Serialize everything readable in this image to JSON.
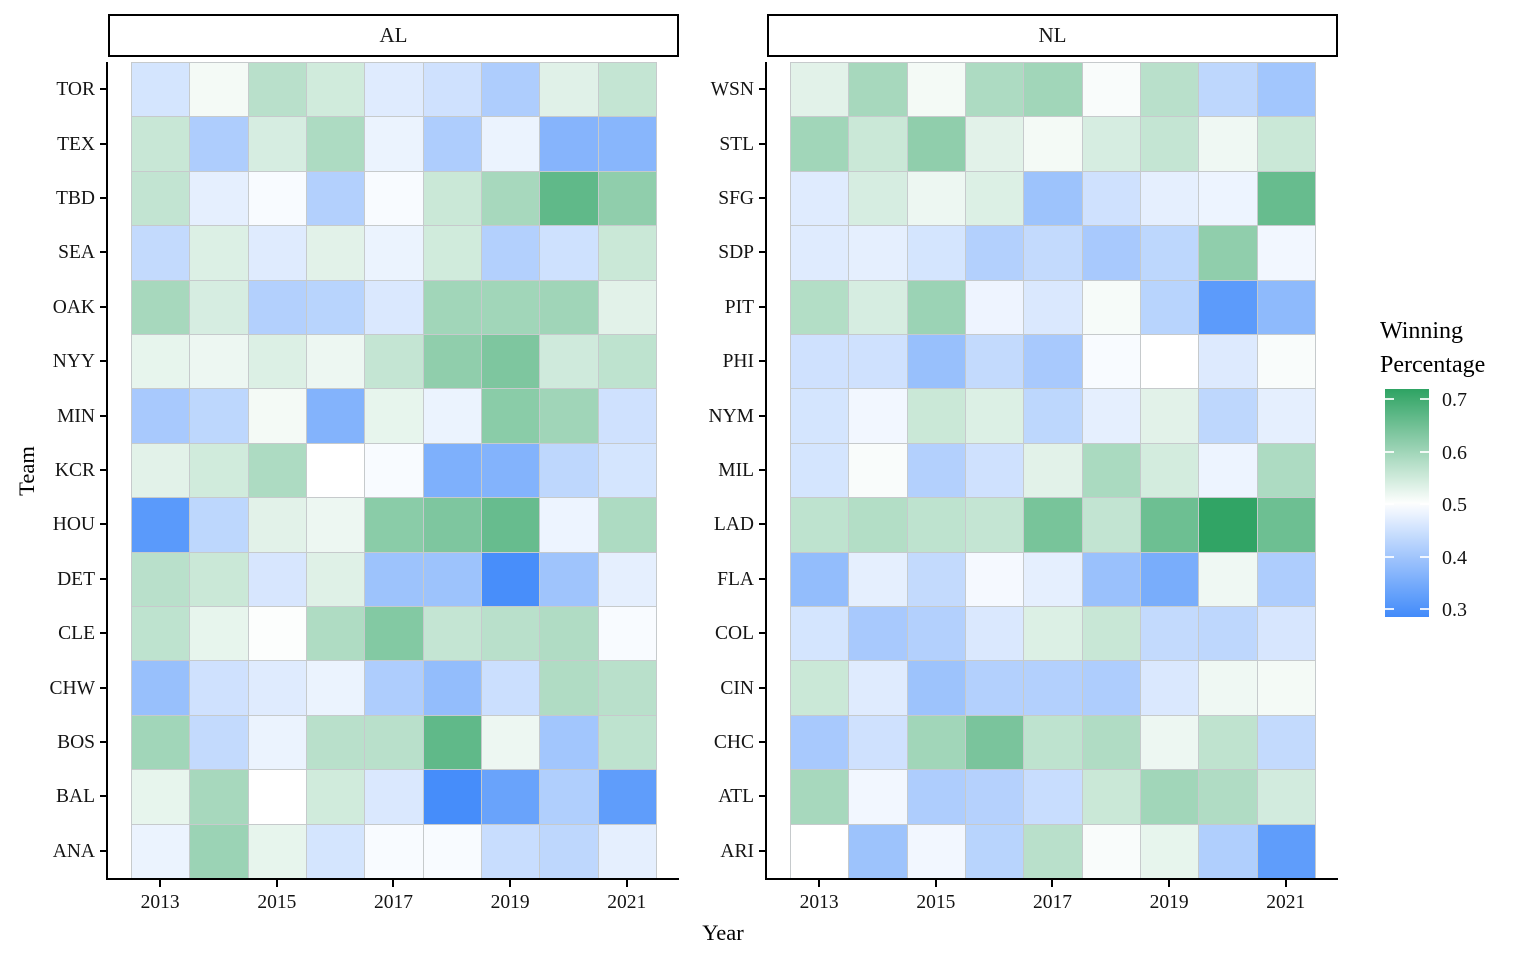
{
  "axes": {
    "x_title": "Year",
    "y_title": "Team",
    "x_tick_labels": [
      "2013",
      "2015",
      "2017",
      "2019",
      "2021"
    ]
  },
  "legend": {
    "title_line1": "Winning",
    "title_line2": "Percentage",
    "tick_labels": [
      "0.7",
      "0.6",
      "0.5",
      "0.4",
      "0.3"
    ],
    "tick_values": [
      0.7,
      0.6,
      0.5,
      0.4,
      0.3
    ]
  },
  "chart_data": {
    "type": "heatmap",
    "title": "",
    "xlabel": "Year",
    "ylabel": "Team",
    "legend_title": "Winning Percentage",
    "x": [
      2013,
      2014,
      2015,
      2016,
      2017,
      2018,
      2019,
      2020,
      2021
    ],
    "x_axis_ticks_shown": [
      2013,
      2015,
      2017,
      2019,
      2021
    ],
    "color_scale": {
      "low": "#428bfa",
      "mid": "#ffffff",
      "high": "#2ea363",
      "midpoint": 0.5,
      "limits": [
        0.285,
        0.72
      ],
      "legend_ticks": [
        0.3,
        0.4,
        0.5,
        0.6,
        0.7
      ]
    },
    "facets": [
      {
        "name": "AL",
        "rows": [
          {
            "team": "TOR",
            "values": [
              0.457,
              0.512,
              0.574,
              0.549,
              0.469,
              0.451,
              0.414,
              0.533,
              0.562
            ]
          },
          {
            "team": "TEX",
            "values": [
              0.558,
              0.414,
              0.543,
              0.586,
              0.481,
              0.414,
              0.481,
              0.367,
              0.37
            ]
          },
          {
            "team": "TBD",
            "values": [
              0.564,
              0.475,
              0.494,
              0.42,
              0.494,
              0.556,
              0.593,
              0.667,
              0.617
            ]
          },
          {
            "team": "SEA",
            "values": [
              0.438,
              0.537,
              0.469,
              0.531,
              0.481,
              0.549,
              0.42,
              0.45,
              0.556
            ]
          },
          {
            "team": "OAK",
            "values": [
              0.593,
              0.543,
              0.42,
              0.426,
              0.463,
              0.599,
              0.599,
              0.6,
              0.531
            ]
          },
          {
            "team": "NYY",
            "values": [
              0.525,
              0.519,
              0.537,
              0.519,
              0.562,
              0.617,
              0.636,
              0.55,
              0.568
            ]
          },
          {
            "team": "MIN",
            "values": [
              0.407,
              0.432,
              0.512,
              0.364,
              0.525,
              0.481,
              0.623,
              0.6,
              0.451
            ]
          },
          {
            "team": "KCR",
            "values": [
              0.531,
              0.549,
              0.586,
              0.5,
              0.494,
              0.358,
              0.364,
              0.433,
              0.457
            ]
          },
          {
            "team": "HOU",
            "values": [
              0.315,
              0.432,
              0.531,
              0.519,
              0.623,
              0.636,
              0.66,
              0.483,
              0.586
            ]
          },
          {
            "team": "DET",
            "values": [
              0.574,
              0.556,
              0.46,
              0.534,
              0.395,
              0.395,
              0.292,
              0.397,
              0.475
            ]
          },
          {
            "team": "CLE",
            "values": [
              0.568,
              0.525,
              0.503,
              0.584,
              0.63,
              0.562,
              0.574,
              0.583,
              0.494
            ]
          },
          {
            "team": "CHW",
            "values": [
              0.389,
              0.451,
              0.469,
              0.481,
              0.414,
              0.383,
              0.447,
              0.583,
              0.574
            ]
          },
          {
            "team": "BOS",
            "values": [
              0.599,
              0.438,
              0.481,
              0.574,
              0.574,
              0.667,
              0.519,
              0.4,
              0.568
            ]
          },
          {
            "team": "BAL",
            "values": [
              0.525,
              0.593,
              0.5,
              0.549,
              0.463,
              0.29,
              0.333,
              0.417,
              0.321
            ]
          },
          {
            "team": "ANA",
            "values": [
              0.481,
              0.605,
              0.525,
              0.457,
              0.494,
              0.494,
              0.444,
              0.433,
              0.475
            ]
          }
        ]
      },
      {
        "name": "NL",
        "rows": [
          {
            "team": "WSN",
            "values": [
              0.531,
              0.593,
              0.512,
              0.586,
              0.599,
              0.506,
              0.574,
              0.433,
              0.401
            ]
          },
          {
            "team": "STL",
            "values": [
              0.599,
              0.556,
              0.617,
              0.531,
              0.512,
              0.543,
              0.562,
              0.517,
              0.556
            ]
          },
          {
            "team": "SFG",
            "values": [
              0.469,
              0.543,
              0.519,
              0.537,
              0.395,
              0.451,
              0.475,
              0.483,
              0.66
            ]
          },
          {
            "team": "SDP",
            "values": [
              0.469,
              0.475,
              0.457,
              0.42,
              0.438,
              0.407,
              0.432,
              0.617,
              0.488
            ]
          },
          {
            "team": "PIT",
            "values": [
              0.58,
              0.543,
              0.605,
              0.484,
              0.463,
              0.509,
              0.426,
              0.317,
              0.377
            ]
          },
          {
            "team": "PHI",
            "values": [
              0.451,
              0.451,
              0.389,
              0.438,
              0.407,
              0.494,
              0.5,
              0.467,
              0.506
            ]
          },
          {
            "team": "NYM",
            "values": [
              0.457,
              0.488,
              0.556,
              0.537,
              0.432,
              0.475,
              0.531,
              0.433,
              0.475
            ]
          },
          {
            "team": "MIL",
            "values": [
              0.457,
              0.506,
              0.42,
              0.451,
              0.531,
              0.589,
              0.546,
              0.483,
              0.586
            ]
          },
          {
            "team": "LAD",
            "values": [
              0.568,
              0.58,
              0.568,
              0.562,
              0.642,
              0.564,
              0.654,
              0.717,
              0.654
            ]
          },
          {
            "team": "FLA",
            "values": [
              0.383,
              0.475,
              0.438,
              0.491,
              0.475,
              0.391,
              0.352,
              0.517,
              0.414
            ]
          },
          {
            "team": "COL",
            "values": [
              0.457,
              0.407,
              0.42,
              0.463,
              0.537,
              0.558,
              0.438,
              0.433,
              0.46
            ]
          },
          {
            "team": "CIN",
            "values": [
              0.556,
              0.469,
              0.395,
              0.42,
              0.42,
              0.414,
              0.463,
              0.517,
              0.512
            ]
          },
          {
            "team": "CHC",
            "values": [
              0.407,
              0.451,
              0.599,
              0.64,
              0.568,
              0.583,
              0.519,
              0.567,
              0.438
            ]
          },
          {
            "team": "ATL",
            "values": [
              0.593,
              0.488,
              0.414,
              0.422,
              0.444,
              0.556,
              0.599,
              0.583,
              0.547
            ]
          },
          {
            "team": "ARI",
            "values": [
              0.5,
              0.395,
              0.488,
              0.426,
              0.574,
              0.506,
              0.525,
              0.417,
              0.321
            ]
          }
        ]
      }
    ]
  }
}
